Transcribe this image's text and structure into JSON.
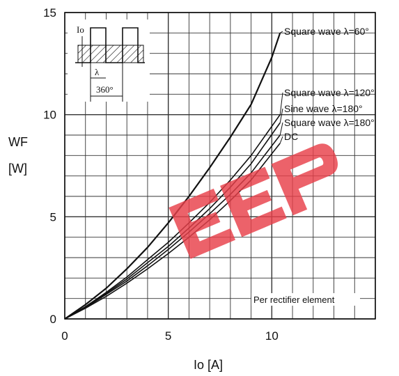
{
  "chart_data": {
    "type": "line",
    "ylabel_main": "WF",
    "ylabel_unit": "[W]",
    "xlabel": "Io  [A]",
    "xlim": [
      0,
      15
    ],
    "ylim": [
      0,
      15
    ],
    "x_ticks": [
      "0",
      "5",
      "10"
    ],
    "y_ticks": [
      "0",
      "5",
      "10",
      "15"
    ],
    "grid": true,
    "note": "Per rectifier element",
    "inset": {
      "io_label": "Io",
      "lambda_label": "λ",
      "period_label": "360°"
    },
    "series": [
      {
        "name": "Square wave λ=60°",
        "x": [
          0,
          1,
          2,
          3,
          4,
          5,
          6,
          7,
          8,
          9,
          10,
          10.4
        ],
        "y": [
          0,
          0.7,
          1.5,
          2.45,
          3.5,
          4.7,
          6.0,
          7.4,
          8.9,
          10.5,
          12.8,
          14.0
        ]
      },
      {
        "name": "Square wave λ=120°",
        "x": [
          0,
          1,
          2,
          3,
          4,
          5,
          6,
          7,
          8,
          9,
          10.4
        ],
        "y": [
          0,
          0.6,
          1.3,
          2.05,
          2.9,
          3.75,
          4.7,
          5.7,
          6.8,
          8.0,
          10.0
        ]
      },
      {
        "name": "Sine wave λ=180°",
        "x": [
          0,
          1,
          2,
          3,
          4,
          5,
          6,
          7,
          8,
          9,
          10.4
        ],
        "y": [
          0,
          0.58,
          1.25,
          1.95,
          2.75,
          3.55,
          4.45,
          5.4,
          6.45,
          7.6,
          9.6
        ]
      },
      {
        "name": "Square wave λ=180°",
        "x": [
          0,
          1,
          2,
          3,
          4,
          5,
          6,
          7,
          8,
          9,
          10.4
        ],
        "y": [
          0,
          0.55,
          1.2,
          1.85,
          2.6,
          3.4,
          4.25,
          5.15,
          6.1,
          7.15,
          9.0
        ]
      },
      {
        "name": "DC",
        "x": [
          0,
          1,
          2,
          3,
          4,
          5,
          6,
          7,
          8,
          9,
          10.4
        ],
        "y": [
          0,
          0.52,
          1.1,
          1.75,
          2.45,
          3.2,
          4.0,
          4.85,
          5.8,
          6.8,
          8.6
        ]
      }
    ],
    "curve_labels": [
      {
        "text": "Square wave  λ=60°",
        "series": 0
      },
      {
        "text": "Square wave  λ=120°",
        "series": 1
      },
      {
        "text": "Sine  wave  λ=180°",
        "series": 2
      },
      {
        "text": "Square  wave  λ=180°",
        "series": 3
      },
      {
        "text": "DC",
        "series": 4
      }
    ],
    "colors": {
      "grid": "#333333",
      "line": "#111111",
      "watermark": "#e8404a"
    }
  }
}
